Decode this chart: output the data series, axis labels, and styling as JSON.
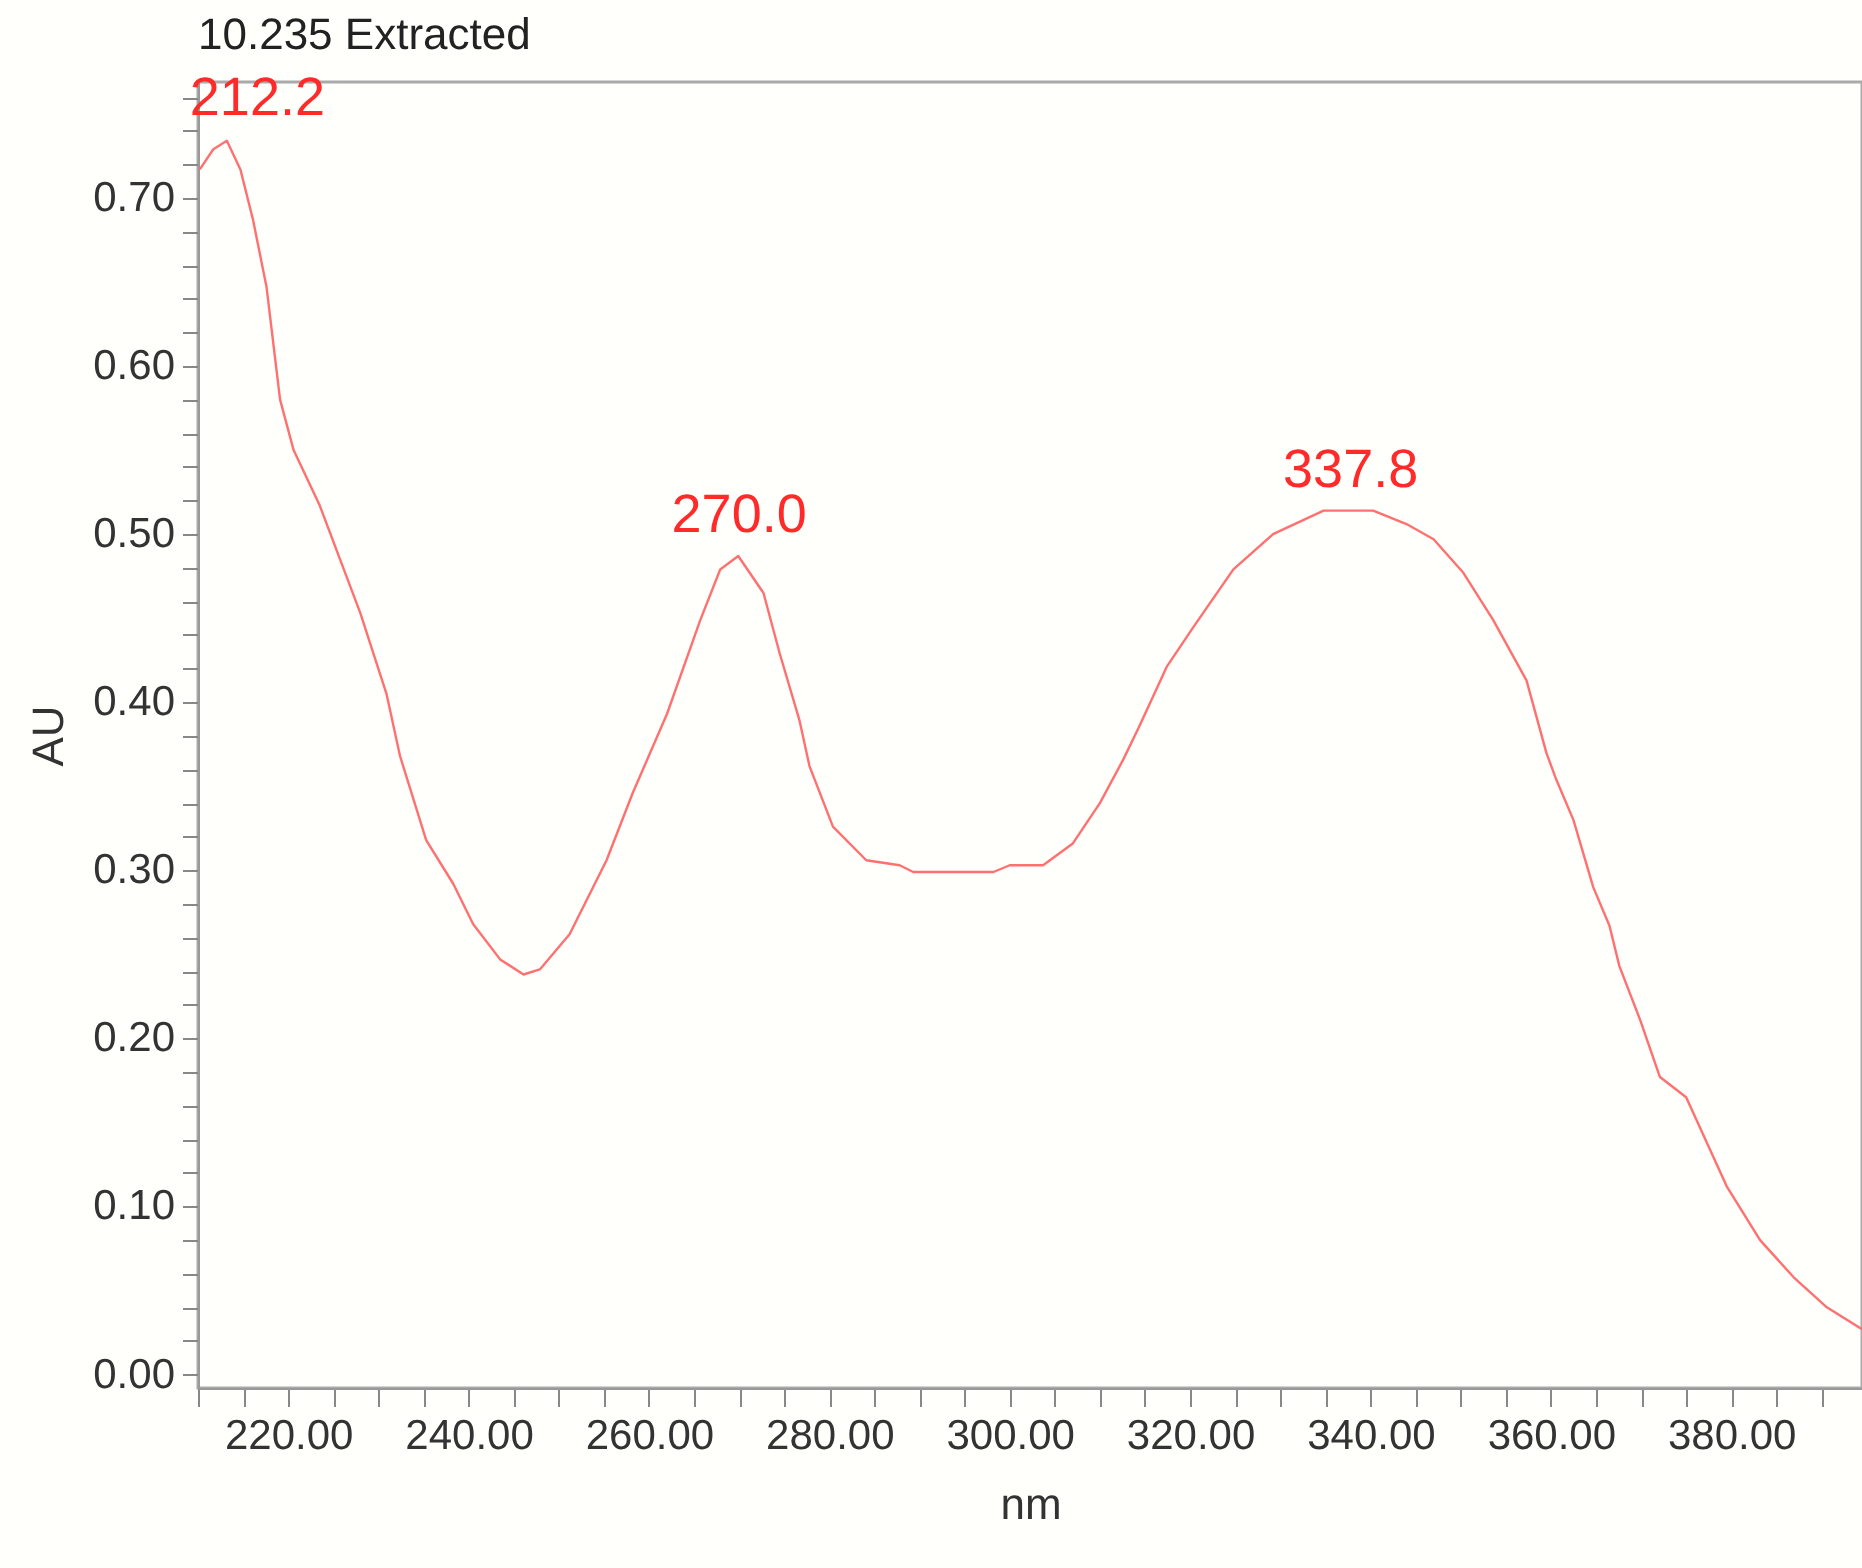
{
  "chart_data": {
    "type": "line",
    "title": "10.235 Extracted",
    "xlabel": "nm",
    "ylabel": "AU",
    "x": [
      210.2,
      211.7,
      213.2,
      214.7,
      216.1,
      217.6,
      219.1,
      220.6,
      223.5,
      228.0,
      230.9,
      232.4,
      235.3,
      238.3,
      240.5,
      243.5,
      246.1,
      247.9,
      251.2,
      255.3,
      258.2,
      262.0,
      265.7,
      267.9,
      269.9,
      272.7,
      274.5,
      276.7,
      277.8,
      280.4,
      284.1,
      287.8,
      289.3,
      298.2,
      300.0,
      303.7,
      307.0,
      310.0,
      312.6,
      314.4,
      317.4,
      320.4,
      324.8,
      329.2,
      334.8,
      340.3,
      344.0,
      347.0,
      350.3,
      353.6,
      357.3,
      359.5,
      360.6,
      362.5,
      364.7,
      366.5,
      367.6,
      369.9,
      372.1,
      375.0,
      379.5,
      383.2,
      386.9,
      390.6,
      394.5
    ],
    "series": [
      {
        "color": "#ff7070",
        "values": [
          0.717,
          0.729,
          0.734,
          0.717,
          0.687,
          0.647,
          0.58,
          0.55,
          0.517,
          0.453,
          0.405,
          0.368,
          0.318,
          0.292,
          0.268,
          0.247,
          0.238,
          0.241,
          0.262,
          0.306,
          0.346,
          0.393,
          0.449,
          0.479,
          0.487,
          0.465,
          0.429,
          0.389,
          0.362,
          0.326,
          0.306,
          0.303,
          0.299,
          0.299,
          0.303,
          0.303,
          0.316,
          0.34,
          0.366,
          0.386,
          0.421,
          0.445,
          0.479,
          0.5,
          0.514,
          0.514,
          0.506,
          0.497,
          0.477,
          0.449,
          0.413,
          0.37,
          0.354,
          0.33,
          0.29,
          0.267,
          0.243,
          0.211,
          0.177,
          0.165,
          0.112,
          0.08,
          0.058,
          0.04,
          0.027
        ]
      }
    ],
    "annotations": [
      {
        "text": "212.2",
        "x": 212.2,
        "y": 0.735
      },
      {
        "text": "270.0",
        "x": 270.0,
        "y": 0.487
      },
      {
        "text": "337.8",
        "x": 337.8,
        "y": 0.514
      }
    ],
    "xlim": [
      210,
      394.5
    ],
    "ylim": [
      -0.008,
      0.769
    ],
    "xticks": [
      {
        "value": 210,
        "label": null
      },
      {
        "value": 215,
        "label": null
      },
      {
        "value": 220,
        "label": "220.00"
      },
      {
        "value": 225,
        "label": null
      },
      {
        "value": 230,
        "label": null
      },
      {
        "value": 235,
        "label": null
      },
      {
        "value": 240,
        "label": "240.00"
      },
      {
        "value": 245,
        "label": null
      },
      {
        "value": 250,
        "label": null
      },
      {
        "value": 255,
        "label": null
      },
      {
        "value": 260,
        "label": "260.00"
      },
      {
        "value": 265,
        "label": null
      },
      {
        "value": 270,
        "label": null
      },
      {
        "value": 275,
        "label": null
      },
      {
        "value": 280,
        "label": "280.00"
      },
      {
        "value": 285,
        "label": null
      },
      {
        "value": 290,
        "label": null
      },
      {
        "value": 295,
        "label": null
      },
      {
        "value": 300,
        "label": "300.00"
      },
      {
        "value": 305,
        "label": null
      },
      {
        "value": 310,
        "label": null
      },
      {
        "value": 315,
        "label": null
      },
      {
        "value": 320,
        "label": "320.00"
      },
      {
        "value": 325,
        "label": null
      },
      {
        "value": 330,
        "label": null
      },
      {
        "value": 335,
        "label": null
      },
      {
        "value": 340,
        "label": "340.00"
      },
      {
        "value": 345,
        "label": null
      },
      {
        "value": 350,
        "label": null
      },
      {
        "value": 355,
        "label": null
      },
      {
        "value": 360,
        "label": "360.00"
      },
      {
        "value": 365,
        "label": null
      },
      {
        "value": 370,
        "label": null
      },
      {
        "value": 375,
        "label": null
      },
      {
        "value": 380,
        "label": "380.00"
      },
      {
        "value": 385,
        "label": null
      },
      {
        "value": 390,
        "label": null
      }
    ],
    "yticks": [
      {
        "value": 0,
        "label": "0.00"
      },
      {
        "value": 0.02,
        "label": null
      },
      {
        "value": 0.04,
        "label": null
      },
      {
        "value": 0.06,
        "label": null
      },
      {
        "value": 0.08,
        "label": null
      },
      {
        "value": 0.1,
        "label": "0.10"
      },
      {
        "value": 0.12,
        "label": null
      },
      {
        "value": 0.14,
        "label": null
      },
      {
        "value": 0.16,
        "label": null
      },
      {
        "value": 0.18,
        "label": null
      },
      {
        "value": 0.2,
        "label": "0.20"
      },
      {
        "value": 0.22,
        "label": null
      },
      {
        "value": 0.24,
        "label": null
      },
      {
        "value": 0.26,
        "label": null
      },
      {
        "value": 0.28,
        "label": null
      },
      {
        "value": 0.3,
        "label": "0.30"
      },
      {
        "value": 0.32,
        "label": null
      },
      {
        "value": 0.34,
        "label": null
      },
      {
        "value": 0.36,
        "label": null
      },
      {
        "value": 0.38,
        "label": null
      },
      {
        "value": 0.4,
        "label": "0.40"
      },
      {
        "value": 0.42,
        "label": null
      },
      {
        "value": 0.44,
        "label": null
      },
      {
        "value": 0.46,
        "label": null
      },
      {
        "value": 0.48,
        "label": null
      },
      {
        "value": 0.5,
        "label": "0.50"
      },
      {
        "value": 0.52,
        "label": null
      },
      {
        "value": 0.54,
        "label": null
      },
      {
        "value": 0.56,
        "label": null
      },
      {
        "value": 0.58,
        "label": null
      },
      {
        "value": 0.6,
        "label": "0.60"
      },
      {
        "value": 0.62,
        "label": null
      },
      {
        "value": 0.64,
        "label": null
      },
      {
        "value": 0.66,
        "label": null
      },
      {
        "value": 0.68,
        "label": null
      },
      {
        "value": 0.7,
        "label": "0.70"
      },
      {
        "value": 0.72,
        "label": null
      },
      {
        "value": 0.74,
        "label": null
      },
      {
        "value": 0.76,
        "label": null
      }
    ],
    "grid": false,
    "marker": "none",
    "line_style": "solid"
  }
}
